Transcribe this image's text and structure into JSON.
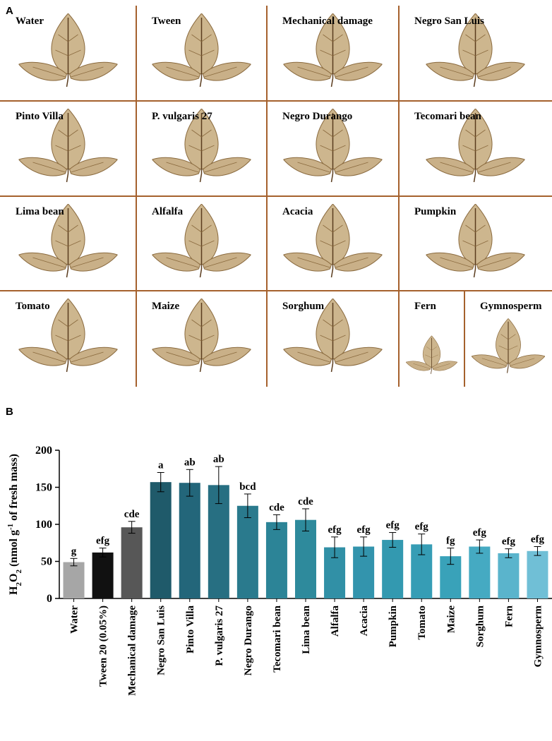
{
  "panel_a": {
    "label": "A",
    "cells": [
      "Water",
      "Tween",
      "Mechanical damage",
      "Negro San Luis",
      "Pinto Villa",
      "P. vulgaris 27",
      "Negro Durango",
      "Tecomari bean",
      "Lima bean",
      "Alfalfa",
      "Acacia",
      "Pumpkin",
      "Tomato",
      "Maize",
      "Sorghum",
      "Fern",
      "Gymnosperm"
    ]
  },
  "chart_data": {
    "type": "bar",
    "panel_label": "B",
    "ylabel_parts": [
      {
        "text": "H"
      },
      {
        "text": "2",
        "shift": "sub"
      },
      {
        "text": "O"
      },
      {
        "text": "2",
        "shift": "sub"
      },
      {
        "text": " (nmol  g"
      },
      {
        "text": "-1",
        "shift": "super"
      },
      {
        "text": " of fresh mass)"
      }
    ],
    "categories": [
      "Water",
      "Tween 20 (0.05%)",
      "Mechanical damage",
      "Negro San Luis",
      "Pinto Villa",
      "P. vulgaris 27",
      "Negro Durango",
      "Tecomari bean",
      "Lima bean",
      "Alfalfa",
      "Acacia",
      "Pumpkin",
      "Tomato",
      "Maize",
      "Sorghum",
      "Fern",
      "Gymnosperm"
    ],
    "values": [
      49,
      62,
      96,
      157,
      156,
      153,
      125,
      103,
      106,
      69,
      70,
      79,
      73,
      57,
      70,
      61,
      64
    ],
    "errors": [
      5,
      6,
      8,
      13,
      18,
      25,
      16,
      10,
      15,
      14,
      13,
      10,
      14,
      11,
      9,
      6,
      6
    ],
    "significance": [
      "g",
      "efg",
      "cde",
      "a",
      "ab",
      "ab",
      "bcd",
      "cde",
      "cde",
      "efg",
      "efg",
      "efg",
      "efg",
      "fg",
      "efg",
      "efg",
      "efg"
    ],
    "colors": [
      "#a6a6a6",
      "#111111",
      "#575757",
      "#1f5a6a",
      "#23667a",
      "#276f82",
      "#2a7a8d",
      "#2c8497",
      "#2e8a9c",
      "#3190a6",
      "#3394ad",
      "#3399b0",
      "#369db5",
      "#39a2b9",
      "#45aac2",
      "#5ab4cc",
      "#70bfd6"
    ],
    "ylim": [
      0,
      200
    ],
    "yticks": [
      0,
      50,
      100,
      150,
      200
    ]
  }
}
